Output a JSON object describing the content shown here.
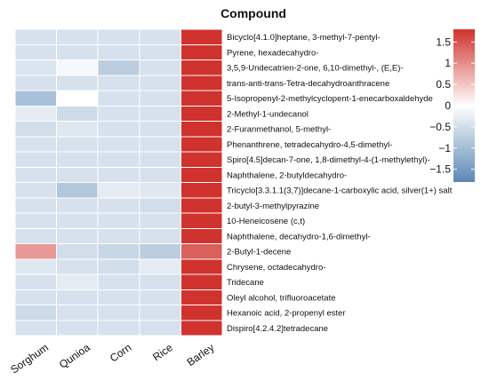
{
  "chart_data": {
    "type": "heatmap",
    "title": "Compound",
    "columns": [
      "Sorghum",
      "Qunioa",
      "Corn",
      "Rice",
      "Barley"
    ],
    "rows": [
      "Bicyclo[4.1.0]heptane, 3-methyl-7-pentyl-",
      "Pyrene, hexadecahydro-",
      "3,5,9-Undecatrien-2-one, 6,10-dimethyl-, (E,E)-",
      "trans-anti-trans-Tetra-decahydroanthracene",
      "5-Isopropenyl-2-methylcyclopent-1-enecarboxaldehyde",
      "2-Methyl-1-undecanol",
      "2-Furanmethanol, 5-methyl-",
      "Phenanthrene, tetradecahydro-4,5-dimethyl-",
      "Spiro[4.5]decan-7-one, 1,8-dimethyl-4-(1-methylethyl)-",
      "Naphthalene, 2-butyldecahydro-",
      "Tricyclo[3.3.1.1(3,7)]decane-1-carboxylic acid, silver(1+) salt",
      "2-butyl-3-methylpyrazine",
      "10-Heneicosene (c,t)",
      "Naphthalene, decahydro-1,6-dimethyl-",
      "2-Butyl-1-decene",
      "Chrysene, octadecahydro-",
      "Tridecane",
      "Oleyl alcohol, trifluoroacetate",
      "Hexanoic acid, 2-propenyl ester",
      "Dispiro[4.2.4.2]tetradecane"
    ],
    "values": [
      [
        -0.45,
        -0.45,
        -0.45,
        -0.45,
        1.8
      ],
      [
        -0.45,
        -0.45,
        -0.45,
        -0.45,
        1.8
      ],
      [
        -0.4,
        -0.1,
        -0.75,
        -0.45,
        1.8
      ],
      [
        -0.45,
        -0.45,
        -0.45,
        -0.45,
        1.8
      ],
      [
        -0.95,
        0.0,
        -0.45,
        -0.45,
        1.8
      ],
      [
        -0.3,
        -0.55,
        -0.45,
        -0.45,
        1.8
      ],
      [
        -0.5,
        -0.35,
        -0.45,
        -0.45,
        1.8
      ],
      [
        -0.45,
        -0.45,
        -0.45,
        -0.45,
        1.8
      ],
      [
        -0.45,
        -0.45,
        -0.45,
        -0.45,
        1.8
      ],
      [
        -0.45,
        -0.45,
        -0.45,
        -0.45,
        1.8
      ],
      [
        -0.45,
        -0.85,
        -0.3,
        -0.35,
        1.8
      ],
      [
        -0.45,
        -0.45,
        -0.45,
        -0.5,
        1.8
      ],
      [
        -0.45,
        -0.45,
        -0.45,
        -0.45,
        1.8
      ],
      [
        -0.45,
        -0.45,
        -0.45,
        -0.45,
        1.8
      ],
      [
        0.9,
        -0.5,
        -0.6,
        -0.75,
        1.4
      ],
      [
        -0.35,
        -0.45,
        -0.5,
        -0.3,
        1.8
      ],
      [
        -0.45,
        -0.3,
        -0.45,
        -0.45,
        1.8
      ],
      [
        -0.45,
        -0.45,
        -0.45,
        -0.45,
        1.8
      ],
      [
        -0.55,
        -0.45,
        -0.45,
        -0.45,
        1.8
      ],
      [
        -0.45,
        -0.45,
        -0.45,
        -0.45,
        1.8
      ]
    ],
    "colorbar": {
      "ticks": [
        1.5,
        1,
        0.5,
        0,
        -0.5,
        -1,
        -1.5
      ],
      "tick_labels": [
        "1.5",
        "1",
        "0.5",
        "0",
        "−0.5",
        "−1",
        "−1.5"
      ],
      "range": [
        -1.8,
        1.8
      ]
    },
    "colors": {
      "low": "#5b88b5",
      "mid": "#ffffff",
      "high": "#d0322d",
      "cell_border": "#ffffff"
    },
    "legend_placement": "right",
    "grid": false
  }
}
